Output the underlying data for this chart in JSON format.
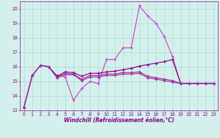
{
  "xlabel": "Windchill (Refroidissement éolien,°C)",
  "background_color": "#d4f0ec",
  "grid_color": "#aad8d0",
  "xmin": -0.5,
  "xmax": 23.5,
  "ymin": 13,
  "ymax": 20.5,
  "series": [
    {
      "y": [
        13.2,
        15.4,
        16.1,
        16.0,
        15.4,
        15.3,
        13.7,
        14.5,
        15.0,
        14.85,
        16.5,
        16.5,
        17.3,
        17.3,
        20.2,
        19.5,
        19.0,
        18.1,
        16.7,
        14.85,
        14.85,
        14.85,
        14.85,
        14.85
      ],
      "color": "#cc44cc",
      "lw": 0.9
    },
    {
      "y": [
        13.2,
        15.4,
        16.1,
        16.0,
        15.35,
        15.65,
        15.6,
        15.35,
        15.55,
        15.55,
        15.65,
        15.7,
        15.8,
        15.9,
        16.05,
        16.15,
        16.25,
        16.35,
        16.5,
        14.85,
        14.85,
        14.85,
        14.85,
        14.85
      ],
      "color": "#880088",
      "lw": 0.9
    },
    {
      "y": [
        13.2,
        15.4,
        16.1,
        16.0,
        15.3,
        15.55,
        15.5,
        15.15,
        15.4,
        15.4,
        15.5,
        15.5,
        15.6,
        15.6,
        15.65,
        15.35,
        15.25,
        15.15,
        15.05,
        14.85,
        14.85,
        14.85,
        14.85,
        14.85
      ],
      "color": "#aa22aa",
      "lw": 0.9
    },
    {
      "y": [
        13.2,
        15.4,
        16.1,
        16.0,
        15.25,
        15.45,
        15.45,
        15.05,
        15.3,
        15.3,
        15.4,
        15.4,
        15.5,
        15.5,
        15.55,
        15.25,
        15.15,
        15.05,
        14.95,
        14.85,
        14.85,
        14.85,
        14.85,
        14.85
      ],
      "color": "#993399",
      "lw": 0.9
    }
  ],
  "yticks": [
    13,
    14,
    15,
    16,
    17,
    18,
    19,
    20
  ],
  "xticks": [
    0,
    1,
    2,
    3,
    4,
    5,
    6,
    7,
    8,
    9,
    10,
    11,
    12,
    13,
    14,
    15,
    16,
    17,
    18,
    19,
    20,
    21,
    22,
    23
  ],
  "tick_color": "#880088",
  "label_fontsize": 5.5,
  "tick_fontsize": 4.8
}
